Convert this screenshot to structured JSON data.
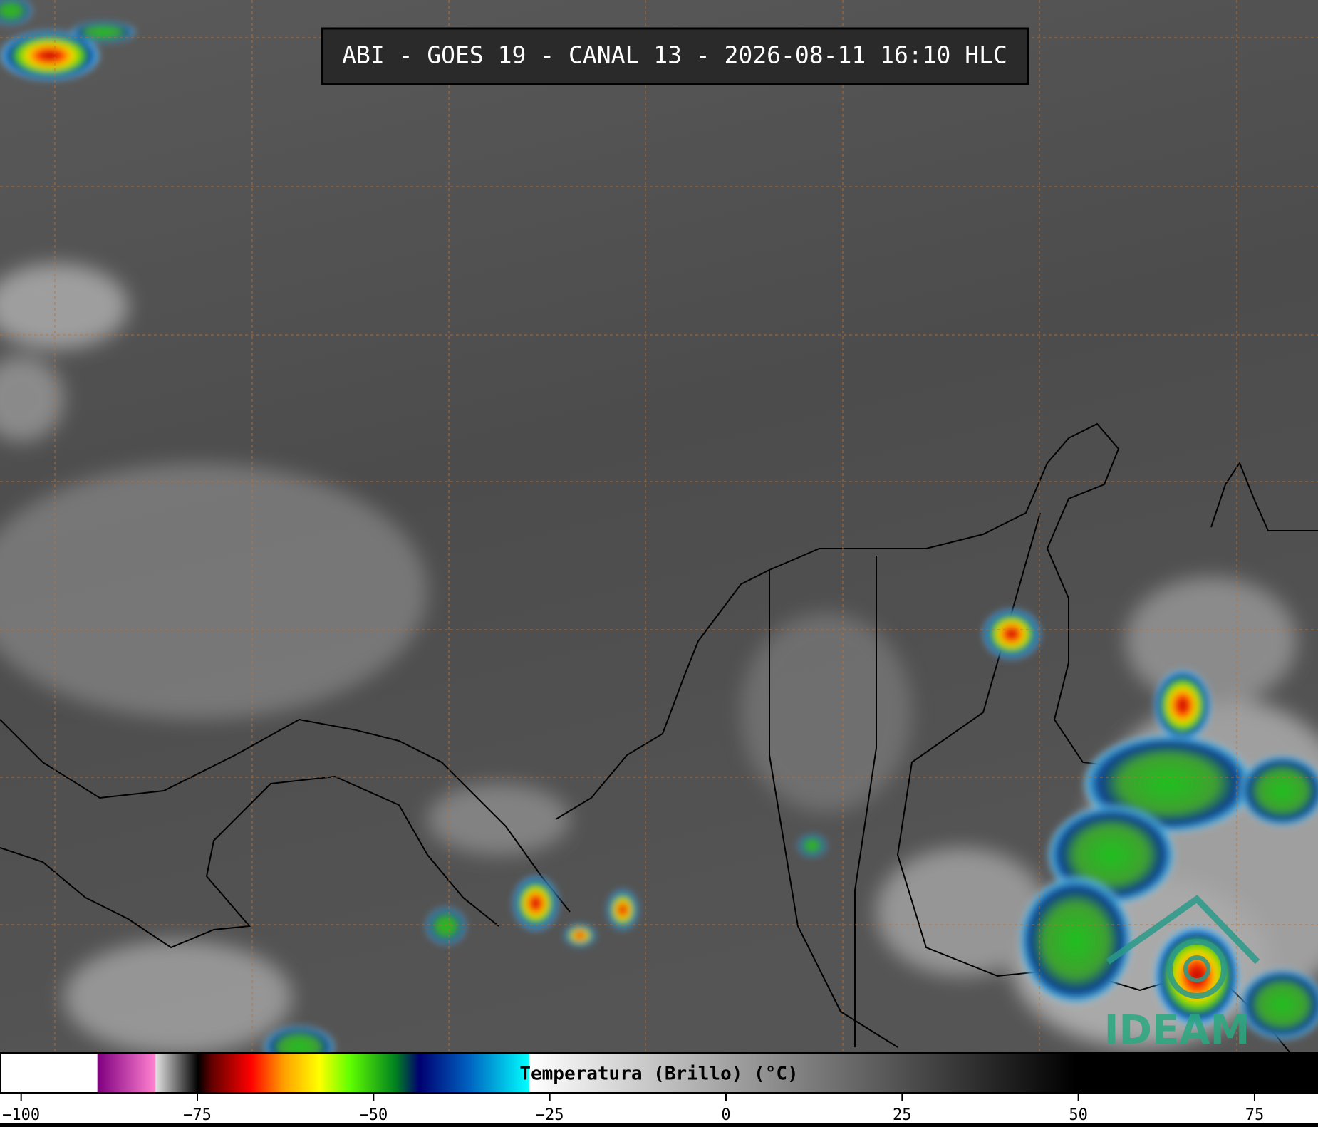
{
  "title": "ABI - GOES 19 - CANAL 13 - 2026-08-11 16:10 HLC",
  "logo": "IDEAM",
  "colorbar": {
    "label": "Temperatura (Brillo) (°C)",
    "lim": [
      -103,
      84
    ],
    "ticks": [
      {
        "value": -100,
        "label": "−100"
      },
      {
        "value": -75,
        "label": "−75"
      },
      {
        "value": -50,
        "label": "−50"
      },
      {
        "value": -25,
        "label": "−25"
      },
      0,
      25,
      50,
      75
    ]
  }
}
